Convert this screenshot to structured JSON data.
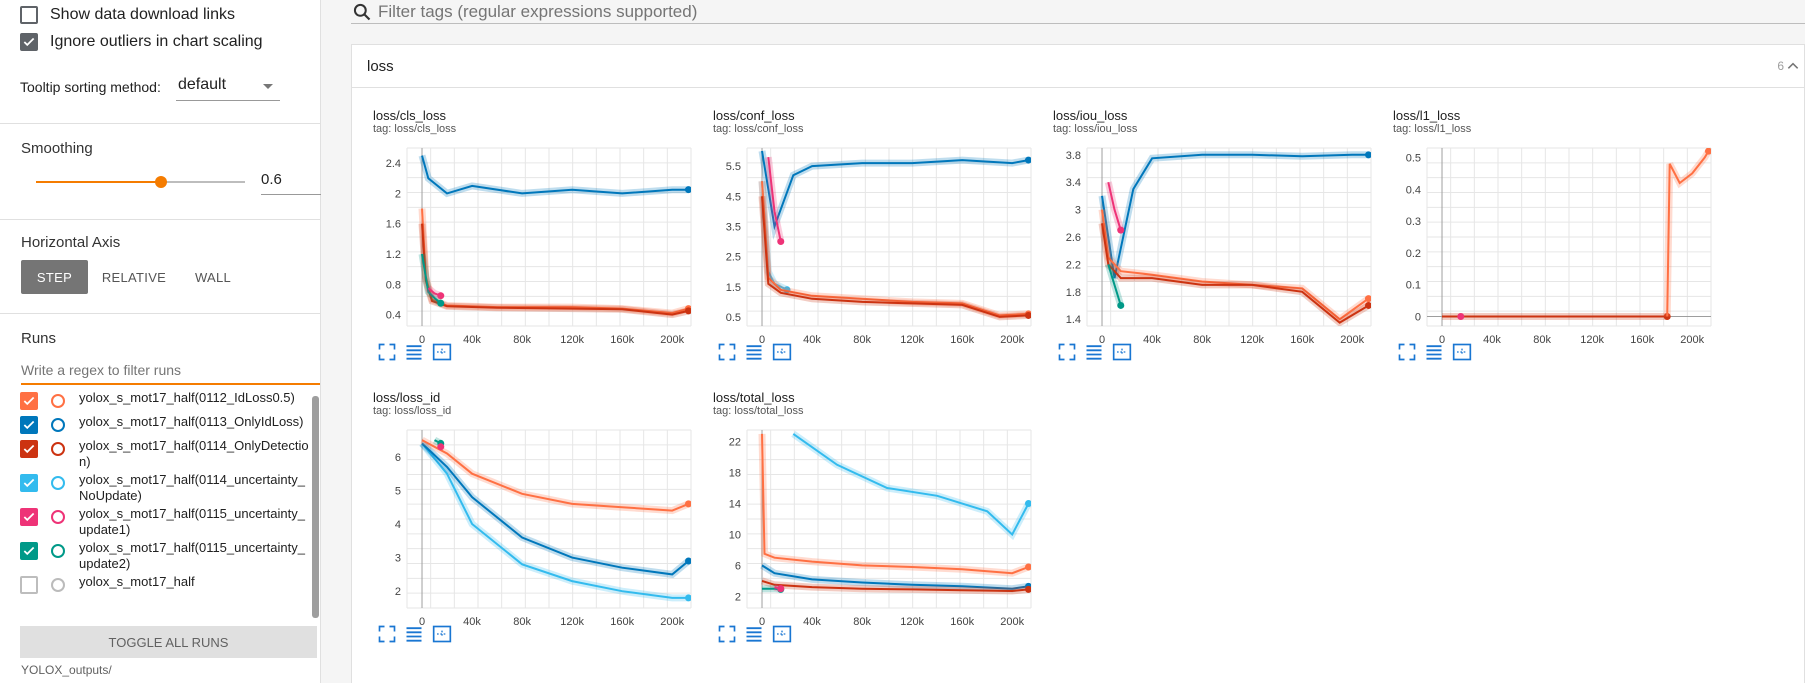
{
  "sidebar": {
    "show_download_label": "Show data download links",
    "ignore_outliers_label": "Ignore outliers in chart scaling",
    "tooltip_label": "Tooltip sorting method:",
    "tooltip_value": "default",
    "smoothing_title": "Smoothing",
    "smoothing_value": "0.6",
    "smoothing_fraction": 0.6,
    "haxis_title": "Horizontal Axis",
    "haxis_options": [
      "STEP",
      "RELATIVE",
      "WALL"
    ],
    "runs_title": "Runs",
    "runs_filter_placeholder": "Write a regex to filter runs",
    "runs": [
      {
        "name": "yolox_s_mot17_half(0112_IdLoss0.5)",
        "color": "#ff7043",
        "checked": true
      },
      {
        "name": "yolox_s_mot17_half(0113_OnlyIdLoss)",
        "color": "#0077bb",
        "checked": true
      },
      {
        "name": "yolox_s_mot17_half(0114_OnlyDetection)",
        "color": "#cc3311",
        "checked": true
      },
      {
        "name": "yolox_s_mot17_half(0114_uncertainty_NoUpdate)",
        "color": "#33bbee",
        "checked": true
      },
      {
        "name": "yolox_s_mot17_half(0115_uncertainty_update1)",
        "color": "#ee3377",
        "checked": true
      },
      {
        "name": "yolox_s_mot17_half(0115_uncertainty_update2)",
        "color": "#009988",
        "checked": true
      },
      {
        "name": "yolox_s_mot17_half",
        "color": "#bbbbbb",
        "checked": false
      }
    ],
    "toggle_all_label": "TOGGLE ALL RUNS",
    "data_location": "YOLOX_outputs/"
  },
  "main": {
    "search_placeholder": "Filter tags (regular expressions supported)",
    "category_title": "loss",
    "category_count": "6"
  },
  "cards": [
    {
      "title": "loss/cls_loss",
      "tag": "tag: loss/cls_loss"
    },
    {
      "title": "loss/conf_loss",
      "tag": "tag: loss/conf_loss"
    },
    {
      "title": "loss/iou_loss",
      "tag": "tag: loss/iou_loss"
    },
    {
      "title": "loss/l1_loss",
      "tag": "tag: loss/l1_loss"
    },
    {
      "title": "loss/loss_id",
      "tag": "tag: loss/loss_id"
    },
    {
      "title": "loss/total_loss",
      "tag": "tag: loss/total_loss"
    }
  ],
  "chart_data": [
    {
      "type": "line",
      "title": "loss/cls_loss",
      "xlim": [
        -12000,
        215000
      ],
      "ylim": [
        0.25,
        2.6
      ],
      "xticks": [
        0,
        40000,
        80000,
        120000,
        160000,
        200000
      ],
      "xtick_labels": [
        "0",
        "40k",
        "80k",
        "120k",
        "160k",
        "200k"
      ],
      "yticks": [
        0.4,
        0.8,
        1.2,
        1.6,
        2,
        2.4
      ],
      "ytick_labels": [
        "0.4",
        "0.8",
        "1.2",
        "1.6",
        "2",
        "2.4"
      ],
      "series": [
        {
          "color": "#0077bb",
          "x": [
            0,
            5000,
            20000,
            40000,
            80000,
            120000,
            160000,
            200000,
            213000
          ],
          "y": [
            2.5,
            2.2,
            2.0,
            2.1,
            2.0,
            2.05,
            2.0,
            2.05,
            2.05
          ]
        },
        {
          "color": "#ff7043",
          "x": [
            0,
            3000,
            8000,
            20000,
            60000,
            120000,
            160000,
            200000,
            213000
          ],
          "y": [
            1.8,
            0.9,
            0.6,
            0.52,
            0.5,
            0.5,
            0.48,
            0.42,
            0.48
          ]
        },
        {
          "color": "#cc3311",
          "x": [
            0,
            3000,
            8000,
            20000,
            60000,
            120000,
            160000,
            200000,
            213000
          ],
          "y": [
            1.6,
            0.85,
            0.58,
            0.51,
            0.49,
            0.48,
            0.47,
            0.4,
            0.45
          ]
        },
        {
          "color": "#009988",
          "x": [
            0,
            5000,
            10000,
            15000
          ],
          "y": [
            1.2,
            0.7,
            0.62,
            0.55
          ]
        },
        {
          "color": "#ee3377",
          "x": [
            5000,
            10000,
            15000
          ],
          "y": [
            0.75,
            0.68,
            0.65
          ]
        }
      ]
    },
    {
      "type": "line",
      "title": "loss/conf_loss",
      "xlim": [
        -12000,
        215000
      ],
      "ylim": [
        0.2,
        6.1
      ],
      "xticks": [
        0,
        40000,
        80000,
        120000,
        160000,
        200000
      ],
      "xtick_labels": [
        "0",
        "40k",
        "80k",
        "120k",
        "160k",
        "200k"
      ],
      "yticks": [
        0.5,
        1.5,
        2.5,
        3.5,
        4.5,
        5.5
      ],
      "ytick_labels": [
        "0.5",
        "1.5",
        "2.5",
        "3.5",
        "4.5",
        "5.5"
      ],
      "series": [
        {
          "color": "#0077bb",
          "x": [
            0,
            10000,
            25000,
            40000,
            80000,
            120000,
            160000,
            200000,
            213000
          ],
          "y": [
            6.0,
            3.5,
            5.2,
            5.5,
            5.6,
            5.6,
            5.7,
            5.6,
            5.7
          ]
        },
        {
          "color": "#ee3377",
          "x": [
            5000,
            10000,
            15000
          ],
          "y": [
            5.8,
            4.0,
            3.0
          ]
        },
        {
          "color": "#33bbee",
          "x": [
            0,
            5000,
            10000,
            20000
          ],
          "y": [
            5.0,
            2.0,
            1.6,
            1.4
          ]
        },
        {
          "color": "#ff7043",
          "x": [
            0,
            5000,
            15000,
            40000,
            80000,
            120000,
            160000,
            190000,
            213000
          ],
          "y": [
            5.0,
            1.8,
            1.4,
            1.2,
            1.1,
            1.0,
            0.95,
            0.55,
            0.6
          ]
        },
        {
          "color": "#cc3311",
          "x": [
            0,
            5000,
            15000,
            40000,
            80000,
            120000,
            160000,
            190000,
            213000
          ],
          "y": [
            4.5,
            1.6,
            1.3,
            1.1,
            1.0,
            0.95,
            0.9,
            0.5,
            0.55
          ]
        }
      ]
    },
    {
      "type": "line",
      "title": "loss/iou_loss",
      "xlim": [
        -12000,
        215000
      ],
      "ylim": [
        1.3,
        3.9
      ],
      "xticks": [
        0,
        40000,
        80000,
        120000,
        160000,
        200000
      ],
      "xtick_labels": [
        "0",
        "40k",
        "80k",
        "120k",
        "160k",
        "200k"
      ],
      "yticks": [
        1.4,
        1.8,
        2.2,
        2.6,
        3,
        3.4,
        3.8
      ],
      "ytick_labels": [
        "1.4",
        "1.8",
        "2.2",
        "2.6",
        "3",
        "3.4",
        "3.8"
      ],
      "series": [
        {
          "color": "#0077bb",
          "x": [
            0,
            10000,
            25000,
            40000,
            80000,
            120000,
            160000,
            200000,
            213000
          ],
          "y": [
            3.2,
            2.0,
            3.3,
            3.75,
            3.8,
            3.8,
            3.78,
            3.8,
            3.8
          ]
        },
        {
          "color": "#ff7043",
          "x": [
            0,
            5000,
            15000,
            40000,
            80000,
            120000,
            160000,
            190000,
            213000
          ],
          "y": [
            3.0,
            2.3,
            2.1,
            2.05,
            1.95,
            1.9,
            1.85,
            1.4,
            1.7
          ]
        },
        {
          "color": "#cc3311",
          "x": [
            0,
            5000,
            15000,
            40000,
            80000,
            120000,
            160000,
            190000,
            213000
          ],
          "y": [
            2.8,
            2.2,
            2.0,
            2.0,
            1.9,
            1.9,
            1.8,
            1.35,
            1.6
          ]
        },
        {
          "color": "#ee3377",
          "x": [
            5000,
            10000,
            15000
          ],
          "y": [
            3.4,
            3.0,
            2.7
          ]
        },
        {
          "color": "#009988",
          "x": [
            5000,
            10000,
            15000
          ],
          "y": [
            2.2,
            1.9,
            1.6
          ]
        }
      ]
    },
    {
      "type": "line",
      "title": "loss/l1_loss",
      "xlim": [
        -12000,
        215000
      ],
      "ylim": [
        -0.03,
        0.53
      ],
      "xticks": [
        0,
        40000,
        80000,
        120000,
        160000,
        200000
      ],
      "xtick_labels": [
        "0",
        "40k",
        "80k",
        "120k",
        "160k",
        "200k"
      ],
      "yticks": [
        0,
        0.1,
        0.2,
        0.3,
        0.4,
        0.5
      ],
      "ytick_labels": [
        "0",
        "0.1",
        "0.2",
        "0.3",
        "0.4",
        "0.5"
      ],
      "series": [
        {
          "color": "#cc3311",
          "x": [
            0,
            40000,
            80000,
            120000,
            160000,
            180000
          ],
          "y": [
            0,
            0,
            0,
            0,
            0,
            0
          ]
        },
        {
          "color": "#ee3377",
          "x": [
            15000
          ],
          "y": [
            0
          ]
        },
        {
          "color": "#ff7043",
          "x": [
            180000,
            182000,
            190000,
            200000,
            210000,
            213000
          ],
          "y": [
            0,
            0.48,
            0.42,
            0.45,
            0.5,
            0.52
          ]
        }
      ]
    },
    {
      "type": "line",
      "title": "loss/loss_id",
      "xlim": [
        -12000,
        215000
      ],
      "ylim": [
        1.5,
        6.8
      ],
      "xticks": [
        0,
        40000,
        80000,
        120000,
        160000,
        200000
      ],
      "xtick_labels": [
        "0",
        "40k",
        "80k",
        "120k",
        "160k",
        "200k"
      ],
      "yticks": [
        2,
        3,
        4,
        5,
        6
      ],
      "ytick_labels": [
        "2",
        "3",
        "4",
        "5",
        "6"
      ],
      "series": [
        {
          "color": "#33bbee",
          "x": [
            0,
            20000,
            40000,
            80000,
            120000,
            160000,
            200000,
            213000
          ],
          "y": [
            6.4,
            5.5,
            4.0,
            2.8,
            2.3,
            2.0,
            1.8,
            1.8
          ]
        },
        {
          "color": "#0077bb",
          "x": [
            0,
            20000,
            40000,
            80000,
            120000,
            160000,
            200000,
            213000
          ],
          "y": [
            6.4,
            5.7,
            4.8,
            3.6,
            3.0,
            2.7,
            2.5,
            2.9
          ]
        },
        {
          "color": "#ff7043",
          "x": [
            0,
            20000,
            40000,
            80000,
            120000,
            160000,
            200000,
            213000
          ],
          "y": [
            6.5,
            6.1,
            5.5,
            4.9,
            4.6,
            4.5,
            4.4,
            4.6
          ]
        },
        {
          "color": "#009988",
          "x": [
            10000,
            15000
          ],
          "y": [
            6.5,
            6.4
          ]
        },
        {
          "color": "#ee3377",
          "x": [
            15000
          ],
          "y": [
            6.3
          ]
        }
      ]
    },
    {
      "type": "line",
      "title": "loss/total_loss",
      "xlim": [
        -12000,
        215000
      ],
      "ylim": [
        0.5,
        23.5
      ],
      "xticks": [
        0,
        40000,
        80000,
        120000,
        160000,
        200000
      ],
      "xtick_labels": [
        "0",
        "40k",
        "80k",
        "120k",
        "160k",
        "200k"
      ],
      "yticks": [
        2,
        6,
        10,
        14,
        18,
        22
      ],
      "ytick_labels": [
        "2",
        "6",
        "10",
        "14",
        "18",
        "22"
      ],
      "series": [
        {
          "color": "#33bbee",
          "x": [
            25000,
            60000,
            100000,
            140000,
            180000,
            200000,
            213000
          ],
          "y": [
            23,
            19,
            16,
            15,
            13,
            10,
            14
          ]
        },
        {
          "color": "#ff7043",
          "x": [
            0,
            2000,
            10000,
            40000,
            80000,
            120000,
            160000,
            200000,
            213000
          ],
          "y": [
            23,
            7.5,
            7.0,
            6.5,
            6.0,
            5.8,
            5.5,
            5.0,
            5.8
          ]
        },
        {
          "color": "#0077bb",
          "x": [
            0,
            10000,
            40000,
            80000,
            120000,
            160000,
            200000,
            213000
          ],
          "y": [
            6.0,
            5.0,
            4.2,
            3.8,
            3.5,
            3.3,
            3.0,
            3.3
          ]
        },
        {
          "color": "#cc3311",
          "x": [
            0,
            10000,
            40000,
            80000,
            120000,
            160000,
            200000,
            213000
          ],
          "y": [
            4.0,
            3.5,
            3.2,
            3.0,
            2.9,
            2.8,
            2.7,
            2.9
          ]
        },
        {
          "color": "#009988",
          "x": [
            0,
            10000,
            15000
          ],
          "y": [
            3.0,
            3.0,
            2.9
          ]
        },
        {
          "color": "#ee3377",
          "x": [
            10000,
            15000
          ],
          "y": [
            3.2,
            3.0
          ]
        }
      ]
    }
  ]
}
